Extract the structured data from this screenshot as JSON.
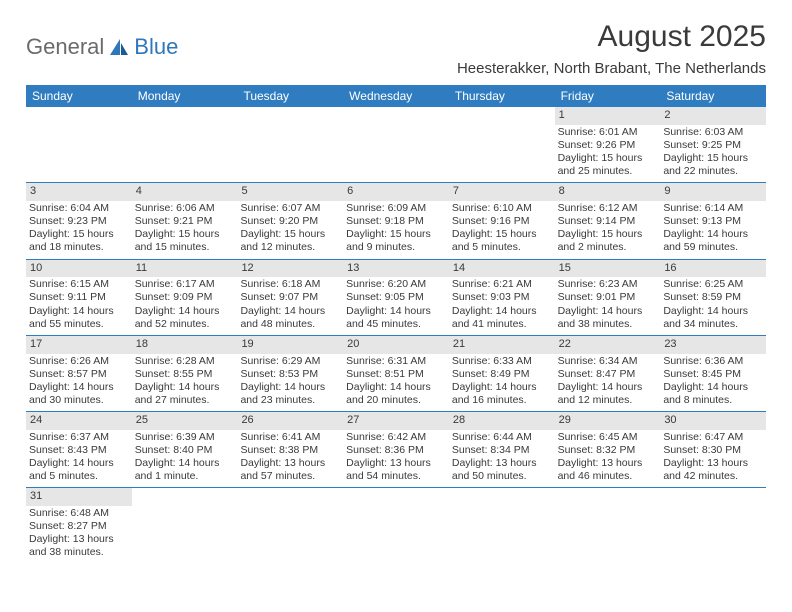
{
  "logo": {
    "text1": "General",
    "text2": "Blue"
  },
  "title": "August 2025",
  "location": "Heesterakker, North Brabant, The Netherlands",
  "colors": {
    "header_bg": "#2f7dc0",
    "header_text": "#ffffff",
    "daynum_bg": "#e6e6e6",
    "row_border": "#2f7dc0",
    "text": "#3a3a3a",
    "logo_blue": "#2f77bb",
    "logo_gray": "#6b6b6b",
    "page_bg": "#ffffff"
  },
  "dow": [
    "Sunday",
    "Monday",
    "Tuesday",
    "Wednesday",
    "Thursday",
    "Friday",
    "Saturday"
  ],
  "weeks": [
    [
      {
        "n": "",
        "lines": []
      },
      {
        "n": "",
        "lines": []
      },
      {
        "n": "",
        "lines": []
      },
      {
        "n": "",
        "lines": []
      },
      {
        "n": "",
        "lines": []
      },
      {
        "n": "1",
        "lines": [
          "Sunrise: 6:01 AM",
          "Sunset: 9:26 PM",
          "Daylight: 15 hours and 25 minutes."
        ]
      },
      {
        "n": "2",
        "lines": [
          "Sunrise: 6:03 AM",
          "Sunset: 9:25 PM",
          "Daylight: 15 hours and 22 minutes."
        ]
      }
    ],
    [
      {
        "n": "3",
        "lines": [
          "Sunrise: 6:04 AM",
          "Sunset: 9:23 PM",
          "Daylight: 15 hours and 18 minutes."
        ]
      },
      {
        "n": "4",
        "lines": [
          "Sunrise: 6:06 AM",
          "Sunset: 9:21 PM",
          "Daylight: 15 hours and 15 minutes."
        ]
      },
      {
        "n": "5",
        "lines": [
          "Sunrise: 6:07 AM",
          "Sunset: 9:20 PM",
          "Daylight: 15 hours and 12 minutes."
        ]
      },
      {
        "n": "6",
        "lines": [
          "Sunrise: 6:09 AM",
          "Sunset: 9:18 PM",
          "Daylight: 15 hours and 9 minutes."
        ]
      },
      {
        "n": "7",
        "lines": [
          "Sunrise: 6:10 AM",
          "Sunset: 9:16 PM",
          "Daylight: 15 hours and 5 minutes."
        ]
      },
      {
        "n": "8",
        "lines": [
          "Sunrise: 6:12 AM",
          "Sunset: 9:14 PM",
          "Daylight: 15 hours and 2 minutes."
        ]
      },
      {
        "n": "9",
        "lines": [
          "Sunrise: 6:14 AM",
          "Sunset: 9:13 PM",
          "Daylight: 14 hours and 59 minutes."
        ]
      }
    ],
    [
      {
        "n": "10",
        "lines": [
          "Sunrise: 6:15 AM",
          "Sunset: 9:11 PM",
          "Daylight: 14 hours and 55 minutes."
        ]
      },
      {
        "n": "11",
        "lines": [
          "Sunrise: 6:17 AM",
          "Sunset: 9:09 PM",
          "Daylight: 14 hours and 52 minutes."
        ]
      },
      {
        "n": "12",
        "lines": [
          "Sunrise: 6:18 AM",
          "Sunset: 9:07 PM",
          "Daylight: 14 hours and 48 minutes."
        ]
      },
      {
        "n": "13",
        "lines": [
          "Sunrise: 6:20 AM",
          "Sunset: 9:05 PM",
          "Daylight: 14 hours and 45 minutes."
        ]
      },
      {
        "n": "14",
        "lines": [
          "Sunrise: 6:21 AM",
          "Sunset: 9:03 PM",
          "Daylight: 14 hours and 41 minutes."
        ]
      },
      {
        "n": "15",
        "lines": [
          "Sunrise: 6:23 AM",
          "Sunset: 9:01 PM",
          "Daylight: 14 hours and 38 minutes."
        ]
      },
      {
        "n": "16",
        "lines": [
          "Sunrise: 6:25 AM",
          "Sunset: 8:59 PM",
          "Daylight: 14 hours and 34 minutes."
        ]
      }
    ],
    [
      {
        "n": "17",
        "lines": [
          "Sunrise: 6:26 AM",
          "Sunset: 8:57 PM",
          "Daylight: 14 hours and 30 minutes."
        ]
      },
      {
        "n": "18",
        "lines": [
          "Sunrise: 6:28 AM",
          "Sunset: 8:55 PM",
          "Daylight: 14 hours and 27 minutes."
        ]
      },
      {
        "n": "19",
        "lines": [
          "Sunrise: 6:29 AM",
          "Sunset: 8:53 PM",
          "Daylight: 14 hours and 23 minutes."
        ]
      },
      {
        "n": "20",
        "lines": [
          "Sunrise: 6:31 AM",
          "Sunset: 8:51 PM",
          "Daylight: 14 hours and 20 minutes."
        ]
      },
      {
        "n": "21",
        "lines": [
          "Sunrise: 6:33 AM",
          "Sunset: 8:49 PM",
          "Daylight: 14 hours and 16 minutes."
        ]
      },
      {
        "n": "22",
        "lines": [
          "Sunrise: 6:34 AM",
          "Sunset: 8:47 PM",
          "Daylight: 14 hours and 12 minutes."
        ]
      },
      {
        "n": "23",
        "lines": [
          "Sunrise: 6:36 AM",
          "Sunset: 8:45 PM",
          "Daylight: 14 hours and 8 minutes."
        ]
      }
    ],
    [
      {
        "n": "24",
        "lines": [
          "Sunrise: 6:37 AM",
          "Sunset: 8:43 PM",
          "Daylight: 14 hours and 5 minutes."
        ]
      },
      {
        "n": "25",
        "lines": [
          "Sunrise: 6:39 AM",
          "Sunset: 8:40 PM",
          "Daylight: 14 hours and 1 minute."
        ]
      },
      {
        "n": "26",
        "lines": [
          "Sunrise: 6:41 AM",
          "Sunset: 8:38 PM",
          "Daylight: 13 hours and 57 minutes."
        ]
      },
      {
        "n": "27",
        "lines": [
          "Sunrise: 6:42 AM",
          "Sunset: 8:36 PM",
          "Daylight: 13 hours and 54 minutes."
        ]
      },
      {
        "n": "28",
        "lines": [
          "Sunrise: 6:44 AM",
          "Sunset: 8:34 PM",
          "Daylight: 13 hours and 50 minutes."
        ]
      },
      {
        "n": "29",
        "lines": [
          "Sunrise: 6:45 AM",
          "Sunset: 8:32 PM",
          "Daylight: 13 hours and 46 minutes."
        ]
      },
      {
        "n": "30",
        "lines": [
          "Sunrise: 6:47 AM",
          "Sunset: 8:30 PM",
          "Daylight: 13 hours and 42 minutes."
        ]
      }
    ],
    [
      {
        "n": "31",
        "lines": [
          "Sunrise: 6:48 AM",
          "Sunset: 8:27 PM",
          "Daylight: 13 hours and 38 minutes."
        ]
      },
      {
        "n": "",
        "lines": []
      },
      {
        "n": "",
        "lines": []
      },
      {
        "n": "",
        "lines": []
      },
      {
        "n": "",
        "lines": []
      },
      {
        "n": "",
        "lines": []
      },
      {
        "n": "",
        "lines": []
      }
    ]
  ]
}
